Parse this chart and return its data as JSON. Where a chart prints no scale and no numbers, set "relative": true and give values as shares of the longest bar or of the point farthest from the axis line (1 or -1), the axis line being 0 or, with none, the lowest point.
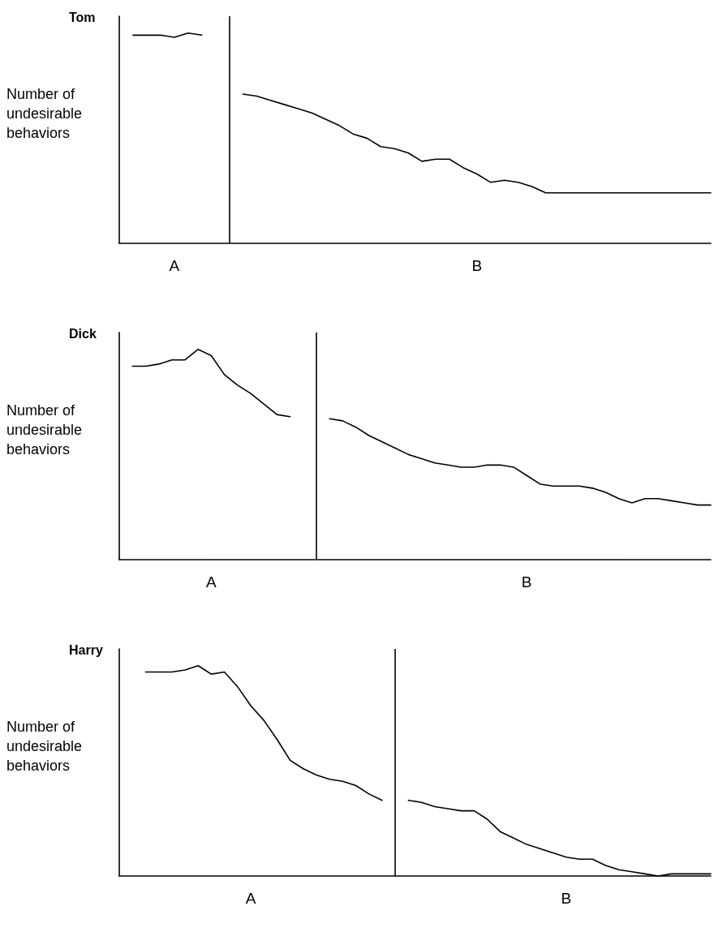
{
  "chart_data": [
    {
      "type": "line",
      "title": "Tom",
      "ylabel": "Number of undesirable behaviors",
      "relative": true,
      "marker": "none",
      "categories": [
        null,
        null,
        null,
        null,
        "A",
        null,
        null,
        null,
        null,
        null,
        null,
        null,
        null,
        null,
        null,
        null,
        null,
        null,
        null,
        null,
        null,
        null,
        null,
        null,
        null,
        null,
        "B",
        null,
        null,
        null,
        null,
        null,
        null,
        null,
        null,
        null,
        null,
        null,
        null,
        null,
        null,
        null,
        null,
        null
      ],
      "series": [
        {
          "color": "#000000",
          "values": [
            null,
            0.99,
            0.99,
            0.99,
            0.98,
            1,
            0.99,
            null,
            null,
            null,
            null,
            null,
            null,
            null,
            null,
            null,
            null,
            null,
            null,
            null,
            null,
            null,
            null,
            null,
            null,
            null,
            null,
            null,
            null,
            null,
            null,
            null,
            null,
            null,
            null,
            null,
            null,
            null,
            null,
            null,
            null,
            null,
            null,
            null
          ]
        },
        {
          "color": "#000000",
          "values": [
            null,
            null,
            null,
            null,
            null,
            null,
            null,
            null,
            null,
            0.71,
            0.7,
            0.68,
            0.66,
            0.64,
            0.62,
            0.59,
            0.56,
            0.52,
            0.5,
            0.46,
            0.45,
            0.43,
            0.39,
            0.4,
            0.4,
            0.36,
            0.33,
            0.29,
            0.3,
            0.29,
            0.27,
            0.24,
            0.24,
            0.24,
            0.24,
            0.24,
            0.24,
            0.24,
            0.24,
            0.24,
            0.24,
            0.24,
            0.24,
            0.24
          ]
        }
      ]
    },
    {
      "type": "line",
      "title": "Dick",
      "ylabel": "Number of undesirable behaviors",
      "relative": true,
      "marker": "none",
      "categories": [
        null,
        null,
        null,
        null,
        null,
        null,
        null,
        "A",
        null,
        null,
        null,
        null,
        null,
        null,
        null,
        null,
        null,
        null,
        null,
        null,
        null,
        null,
        null,
        null,
        null,
        null,
        null,
        null,
        null,
        null,
        null,
        "B",
        null,
        null,
        null,
        null,
        null,
        null,
        null,
        null,
        null,
        null,
        null,
        null,
        null,
        null
      ],
      "series": [
        {
          "color": "#000000",
          "values": [
            null,
            0.92,
            0.92,
            0.93,
            0.95,
            0.95,
            1,
            0.97,
            0.88,
            0.83,
            0.79,
            0.74,
            0.69,
            0.68,
            null,
            null,
            null,
            null,
            null,
            null,
            null,
            null,
            null,
            null,
            null,
            null,
            null,
            null,
            null,
            null,
            null,
            null,
            null,
            null,
            null,
            null,
            null,
            null,
            null,
            null,
            null,
            null,
            null,
            null,
            null,
            null
          ]
        },
        {
          "color": "#000000",
          "values": [
            null,
            null,
            null,
            null,
            null,
            null,
            null,
            null,
            null,
            null,
            null,
            null,
            null,
            null,
            null,
            null,
            0.67,
            0.66,
            0.63,
            0.59,
            0.56,
            0.53,
            0.5,
            0.48,
            0.46,
            0.45,
            0.44,
            0.44,
            0.45,
            0.45,
            0.44,
            0.4,
            0.36,
            0.35,
            0.35,
            0.35,
            0.34,
            0.32,
            0.29,
            0.27,
            0.29,
            0.29,
            0.28,
            0.27,
            0.26,
            0.26
          ]
        }
      ]
    },
    {
      "type": "line",
      "title": "Harry",
      "ylabel": "Number of undesirable behaviors",
      "relative": true,
      "marker": "none",
      "categories": [
        null,
        null,
        null,
        null,
        null,
        null,
        null,
        null,
        null,
        null,
        "A",
        null,
        null,
        null,
        null,
        null,
        null,
        null,
        null,
        null,
        null,
        null,
        null,
        null,
        null,
        null,
        null,
        null,
        null,
        null,
        null,
        null,
        null,
        null,
        "B",
        null,
        null,
        null,
        null,
        null,
        null,
        null,
        null,
        null,
        null,
        null
      ],
      "series": [
        {
          "color": "#000000",
          "values": [
            null,
            null,
            0.97,
            0.97,
            0.97,
            0.98,
            1,
            0.96,
            0.97,
            0.9,
            0.81,
            0.74,
            0.65,
            0.55,
            0.51,
            0.48,
            0.46,
            0.45,
            0.43,
            0.39,
            0.36,
            null,
            null,
            null,
            null,
            null,
            null,
            null,
            null,
            null,
            null,
            null,
            null,
            null,
            null,
            null,
            null,
            null,
            null,
            null,
            null,
            null,
            null,
            null,
            null,
            null
          ]
        },
        {
          "color": "#000000",
          "values": [
            null,
            null,
            null,
            null,
            null,
            null,
            null,
            null,
            null,
            null,
            null,
            null,
            null,
            null,
            null,
            null,
            null,
            null,
            null,
            null,
            null,
            null,
            0.36,
            0.35,
            0.33,
            0.32,
            0.31,
            0.31,
            0.27,
            0.21,
            0.18,
            0.15,
            0.13,
            0.11,
            0.09,
            0.08,
            0.08,
            0.05,
            0.03,
            0.02,
            0.01,
            0,
            0.01,
            0.01,
            0.01,
            0.01
          ]
        }
      ]
    }
  ]
}
